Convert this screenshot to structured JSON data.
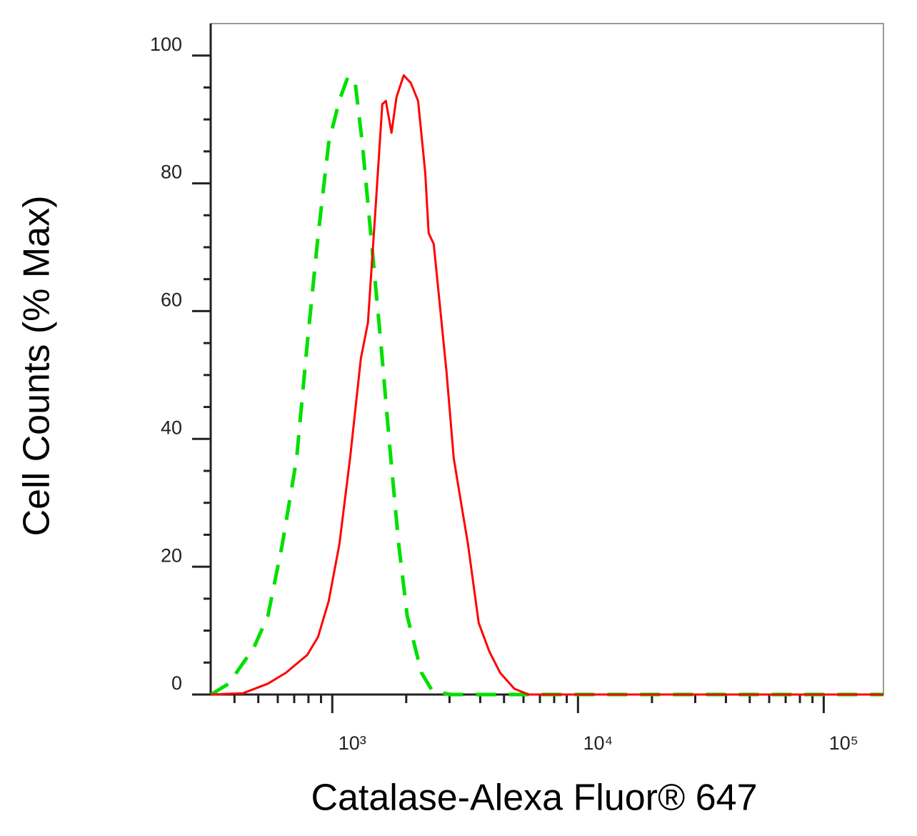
{
  "chart_data": {
    "type": "line",
    "x_label": "Catalase-Alexa Fluor® 647",
    "y_label": "Cell Counts (% Max)",
    "x_scale": "log",
    "xlim": [
      320,
      175000
    ],
    "ylim": [
      0,
      105
    ],
    "xticks": [
      {
        "value": 1000,
        "label": "10³"
      },
      {
        "value": 10000,
        "label": "10⁴"
      },
      {
        "value": 100000,
        "label": "10⁵"
      }
    ],
    "xminorticks": [
      400,
      500,
      600,
      700,
      800,
      900,
      2000,
      3000,
      4000,
      5000,
      6000,
      7000,
      8000,
      9000,
      20000,
      30000,
      40000,
      50000,
      60000,
      70000,
      80000,
      90000
    ],
    "yticks": [
      0,
      20,
      40,
      60,
      80,
      100
    ],
    "yminorticks": [
      5,
      10,
      15,
      25,
      30,
      35,
      45,
      50,
      55,
      65,
      70,
      75,
      85,
      90,
      95
    ],
    "series": [
      {
        "color": "#00e000",
        "dashed": true,
        "x": [
          321,
          379,
          479,
          547,
          626,
          716,
          791,
          875,
          967,
          1069,
          1159,
          1239,
          1325,
          1445,
          1577,
          1709,
          1864,
          2019,
          2307,
          2551,
          3017,
          175000
        ],
        "values": [
          0,
          1.7,
          7.3,
          12.3,
          23.5,
          36.9,
          54.9,
          71.7,
          86.3,
          93.0,
          96.7,
          95.8,
          86.3,
          70.7,
          55.0,
          39.3,
          23.5,
          12.3,
          3.4,
          0.6,
          0,
          0
        ]
      },
      {
        "color": "#ff0000",
        "dashed": false,
        "x": [
          321,
          433,
          547,
          647,
          791,
          875,
          967,
          1069,
          1182,
          1307,
          1397,
          1494,
          1598,
          1652,
          1742,
          1826,
          1953,
          2089,
          2234,
          2389,
          2467,
          2587,
          2729,
          2918,
          3120,
          3337,
          3568,
          3944,
          4360,
          4820,
          5510,
          6300,
          9418,
          175000
        ],
        "values": [
          0,
          0.2,
          1.7,
          3.4,
          6.2,
          9.0,
          14.6,
          23.5,
          37.0,
          52.6,
          58.2,
          75.0,
          92.4,
          92.9,
          87.9,
          93.5,
          96.9,
          95.7,
          92.9,
          81.7,
          72.2,
          70.5,
          61.6,
          50.4,
          37.0,
          30.2,
          23.5,
          11.2,
          6.7,
          3.4,
          0.9,
          0,
          0,
          0
        ]
      }
    ]
  }
}
